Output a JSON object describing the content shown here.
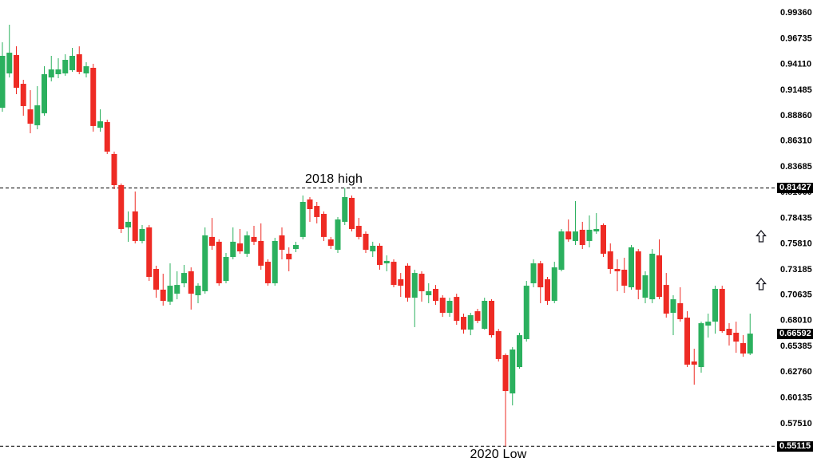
{
  "chart_data": {
    "type": "candlestick",
    "description": "Forex candlestick price chart with horizontal dashed levels marking the 2018 high and 2020 low",
    "annotations": [
      {
        "text": "2018 high",
        "price": 0.81427,
        "x": 418,
        "position": "above-line"
      },
      {
        "text": "2020 Low",
        "price": 0.55115,
        "x": 624,
        "position": "below-line"
      }
    ],
    "level_lines": [
      {
        "price": 0.81427,
        "style": "dashed",
        "color": "#000000"
      },
      {
        "price": 0.55115,
        "style": "dashed",
        "color": "#000000"
      }
    ],
    "highlights": [
      {
        "label": "0.81427",
        "value": 0.81427,
        "role": "level-line-label"
      },
      {
        "label": "0.66592",
        "value": 0.66592,
        "role": "current-price-label"
      },
      {
        "label": "0.55115",
        "value": 0.55115,
        "role": "level-line-label"
      }
    ],
    "y_axis": {
      "side": "right",
      "ticks": [
        "0.99360",
        "0.96735",
        "0.94110",
        "0.91485",
        "0.88860",
        "0.86310",
        "0.83685",
        "0.81060",
        "0.78435",
        "0.75810",
        "0.73185",
        "0.70635",
        "0.68010",
        "0.65385",
        "0.62760",
        "0.60135",
        "0.57510"
      ]
    },
    "arrows": [
      {
        "name": "up-arrow",
        "x": 953,
        "y": 296
      },
      {
        "name": "up-arrow",
        "x": 953,
        "y": 356
      }
    ],
    "colors": {
      "up": "#2bb05e",
      "down": "#ee2b24",
      "background": "#ffffff",
      "axis_text": "#000000",
      "label_highlight_bg": "#000000",
      "label_highlight_text": "#ffffff",
      "line": "#000000"
    },
    "scale": {
      "price_at_top_pixel": 1.0058,
      "price_per_pixel": 0.000813,
      "ylim": [
        0.5229,
        1.0058
      ]
    },
    "ohlc_order": [
      "open",
      "high",
      "low",
      "close"
    ],
    "candles": [
      [
        0.896,
        0.9627,
        0.892,
        0.9489
      ],
      [
        0.931,
        0.9806,
        0.9269,
        0.9521
      ],
      [
        0.9497,
        0.9586,
        0.9099,
        0.9164
      ],
      [
        0.9204,
        0.9245,
        0.8879,
        0.8977
      ],
      [
        0.8944,
        0.9139,
        0.87,
        0.8798
      ],
      [
        0.8782,
        0.918,
        0.8741,
        0.8985
      ],
      [
        0.8904,
        0.9383,
        0.8879,
        0.9302
      ],
      [
        0.9269,
        0.9489,
        0.9229,
        0.9351
      ],
      [
        0.9302,
        0.9465,
        0.9261,
        0.9351
      ],
      [
        0.931,
        0.9505,
        0.9286,
        0.9448
      ],
      [
        0.9343,
        0.957,
        0.9326,
        0.9489
      ],
      [
        0.9505,
        0.9586,
        0.9302,
        0.9326
      ],
      [
        0.931,
        0.9424,
        0.9269,
        0.9383
      ],
      [
        0.9367,
        0.9408,
        0.8717,
        0.8774
      ],
      [
        0.8757,
        0.8944,
        0.8717,
        0.8822
      ],
      [
        0.8814,
        0.8839,
        0.8489,
        0.8513
      ],
      [
        0.8489,
        0.8513,
        0.8131,
        0.8172
      ],
      [
        0.8172,
        0.8188,
        0.7684,
        0.7725
      ],
      [
        0.7741,
        0.7904,
        0.7595,
        0.7798
      ],
      [
        0.7904,
        0.8107,
        0.7578,
        0.7603
      ],
      [
        0.7603,
        0.7765,
        0.7578,
        0.7725
      ],
      [
        0.7741,
        0.7765,
        0.7196,
        0.7237
      ],
      [
        0.7318,
        0.7351,
        0.7025,
        0.7107
      ],
      [
        0.7107,
        0.7269,
        0.6944,
        0.6993
      ],
      [
        0.6985,
        0.7375,
        0.6952,
        0.7147
      ],
      [
        0.7066,
        0.7294,
        0.7009,
        0.7155
      ],
      [
        0.7172,
        0.7359,
        0.7131,
        0.7277
      ],
      [
        0.7294,
        0.7334,
        0.6904,
        0.7066
      ],
      [
        0.705,
        0.7172,
        0.6969,
        0.7147
      ],
      [
        0.7091,
        0.7741,
        0.7066,
        0.766
      ],
      [
        0.7644,
        0.7838,
        0.7513,
        0.7554
      ],
      [
        0.7595,
        0.7619,
        0.7147,
        0.7172
      ],
      [
        0.7196,
        0.7481,
        0.7172,
        0.744
      ],
      [
        0.744,
        0.7741,
        0.7416,
        0.7595
      ],
      [
        0.7578,
        0.7725,
        0.7473,
        0.7497
      ],
      [
        0.7473,
        0.77,
        0.744,
        0.766
      ],
      [
        0.7644,
        0.7757,
        0.7562,
        0.7595
      ],
      [
        0.7603,
        0.7782,
        0.731,
        0.7351
      ],
      [
        0.7391,
        0.7416,
        0.7147,
        0.7172
      ],
      [
        0.7172,
        0.7635,
        0.7147,
        0.7603
      ],
      [
        0.766,
        0.7741,
        0.7416,
        0.7513
      ],
      [
        0.7473,
        0.7538,
        0.7294,
        0.7416
      ],
      [
        0.7521,
        0.7595,
        0.7489,
        0.7562
      ],
      [
        0.7644,
        0.8066,
        0.7619,
        0.8001
      ],
      [
        0.8026,
        0.805,
        0.7798,
        0.7928
      ],
      [
        0.796,
        0.8001,
        0.7782,
        0.7847
      ],
      [
        0.7879,
        0.7904,
        0.7603,
        0.7644
      ],
      [
        0.7619,
        0.7644,
        0.7521,
        0.7554
      ],
      [
        0.7513,
        0.7847,
        0.7481,
        0.7822
      ],
      [
        0.7798,
        0.81427,
        0.7765,
        0.805
      ],
      [
        0.8042,
        0.8066,
        0.77,
        0.7725
      ],
      [
        0.7757,
        0.7838,
        0.7619,
        0.7644
      ],
      [
        0.7676,
        0.77,
        0.7481,
        0.7513
      ],
      [
        0.7497,
        0.7595,
        0.744,
        0.7554
      ],
      [
        0.7554,
        0.7578,
        0.731,
        0.7359
      ],
      [
        0.7375,
        0.7456,
        0.7294,
        0.74
      ],
      [
        0.7391,
        0.7416,
        0.7131,
        0.7155
      ],
      [
        0.7213,
        0.7277,
        0.7033,
        0.7147
      ],
      [
        0.7351,
        0.7375,
        0.6985,
        0.7025
      ],
      [
        0.7025,
        0.731,
        0.6725,
        0.7277
      ],
      [
        0.7269,
        0.7294,
        0.6985,
        0.7091
      ],
      [
        0.705,
        0.7172,
        0.6969,
        0.7091
      ],
      [
        0.7115,
        0.7155,
        0.6952,
        0.6993
      ],
      [
        0.7025,
        0.705,
        0.683,
        0.6871
      ],
      [
        0.6871,
        0.7025,
        0.683,
        0.6993
      ],
      [
        0.7033,
        0.7066,
        0.6749,
        0.6789
      ],
      [
        0.683,
        0.6863,
        0.6659,
        0.67
      ],
      [
        0.67,
        0.6871,
        0.6643,
        0.6847
      ],
      [
        0.6887,
        0.6912,
        0.6765,
        0.6789
      ],
      [
        0.6708,
        0.7025,
        0.67,
        0.6993
      ],
      [
        0.6993,
        0.7009,
        0.6619,
        0.6643
      ],
      [
        0.6684,
        0.6708,
        0.6375,
        0.64
      ],
      [
        0.644,
        0.6456,
        0.55115,
        0.6074
      ],
      [
        0.605,
        0.6521,
        0.5928,
        0.6497
      ],
      [
        0.6318,
        0.6668,
        0.6302,
        0.6643
      ],
      [
        0.6603,
        0.7196,
        0.6578,
        0.7147
      ],
      [
        0.7172,
        0.7416,
        0.7131,
        0.7375
      ],
      [
        0.7375,
        0.74,
        0.6969,
        0.7131
      ],
      [
        0.7213,
        0.7237,
        0.6952,
        0.6993
      ],
      [
        0.6993,
        0.7391,
        0.6969,
        0.7334
      ],
      [
        0.731,
        0.7725,
        0.7294,
        0.77
      ],
      [
        0.77,
        0.7822,
        0.7595,
        0.7619
      ],
      [
        0.7603,
        0.8009,
        0.7562,
        0.77
      ],
      [
        0.7717,
        0.7798,
        0.7521,
        0.7562
      ],
      [
        0.7603,
        0.7863,
        0.7538,
        0.7717
      ],
      [
        0.77,
        0.7887,
        0.7676,
        0.7725
      ],
      [
        0.7765,
        0.7782,
        0.744,
        0.7473
      ],
      [
        0.7497,
        0.7578,
        0.7269,
        0.7318
      ],
      [
        0.7318,
        0.7416,
        0.7091,
        0.7294
      ],
      [
        0.731,
        0.7432,
        0.7074,
        0.7147
      ],
      [
        0.7131,
        0.7562,
        0.7107,
        0.7538
      ],
      [
        0.7497,
        0.7521,
        0.7009,
        0.7107
      ],
      [
        0.7025,
        0.7294,
        0.6969,
        0.7253
      ],
      [
        0.7009,
        0.7521,
        0.6969,
        0.7473
      ],
      [
        0.7456,
        0.7619,
        0.7009,
        0.7033
      ],
      [
        0.7155,
        0.7277,
        0.6822,
        0.6863
      ],
      [
        0.6871,
        0.705,
        0.6643,
        0.7009
      ],
      [
        0.6969,
        0.7131,
        0.6781,
        0.6806
      ],
      [
        0.6822,
        0.6887,
        0.6318,
        0.6343
      ],
      [
        0.6375,
        0.6505,
        0.6139,
        0.6343
      ],
      [
        0.6318,
        0.6781,
        0.6261,
        0.6765
      ],
      [
        0.6741,
        0.6863,
        0.6619,
        0.6781
      ],
      [
        0.6781,
        0.7147,
        0.6659,
        0.7115
      ],
      [
        0.7115,
        0.7147,
        0.6668,
        0.6684
      ],
      [
        0.6708,
        0.6765,
        0.6538,
        0.6643
      ],
      [
        0.6668,
        0.6781,
        0.6464,
        0.6578
      ],
      [
        0.6562,
        0.6643,
        0.6424,
        0.6456
      ],
      [
        0.6456,
        0.6863,
        0.644,
        0.66592
      ]
    ]
  }
}
